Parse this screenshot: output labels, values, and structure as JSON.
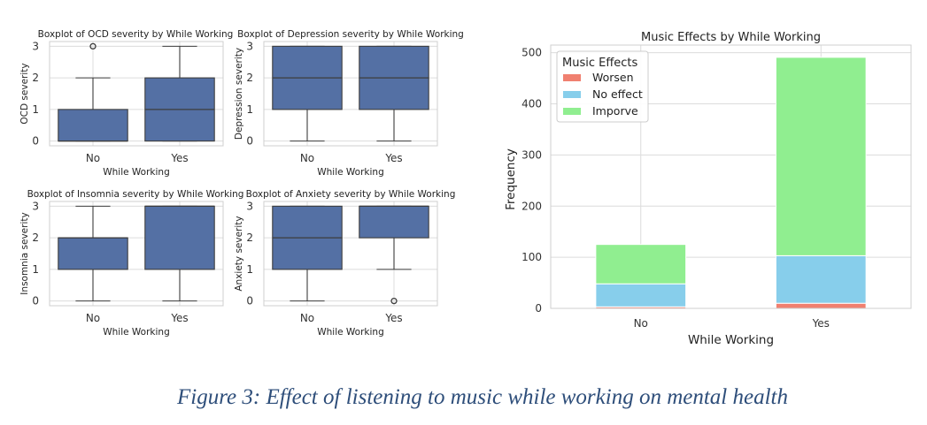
{
  "figure": {
    "caption": "Figure 3: Effect of listening to music while working on mental health"
  },
  "chart_data": [
    {
      "type": "boxplot",
      "title": "Boxplot of OCD severity by While Working",
      "xlabel": "While Working",
      "ylabel": "OCD severity",
      "categories": [
        "No",
        "Yes"
      ],
      "yticks": [
        0,
        1,
        2,
        3
      ],
      "ylim": [
        -0.15,
        3.15
      ],
      "grid": true,
      "color": "#5470a4",
      "boxes": [
        {
          "category": "No",
          "whislo": 0,
          "q1": 0,
          "med": 0,
          "q3": 1,
          "whishi": 2,
          "fliers": [
            3
          ]
        },
        {
          "category": "Yes",
          "whislo": 0,
          "q1": 0,
          "med": 1,
          "q3": 2,
          "whishi": 3,
          "fliers": []
        }
      ]
    },
    {
      "type": "boxplot",
      "title": "Boxplot of Depression severity by While Working",
      "xlabel": "While Working",
      "ylabel": "Depression severity",
      "categories": [
        "No",
        "Yes"
      ],
      "yticks": [
        0,
        1,
        2,
        3
      ],
      "ylim": [
        -0.15,
        3.15
      ],
      "grid": true,
      "color": "#5470a4",
      "boxes": [
        {
          "category": "No",
          "whislo": 0,
          "q1": 1,
          "med": 2,
          "q3": 3,
          "whishi": 3,
          "fliers": []
        },
        {
          "category": "Yes",
          "whislo": 0,
          "q1": 1,
          "med": 2,
          "q3": 3,
          "whishi": 3,
          "fliers": []
        }
      ]
    },
    {
      "type": "boxplot",
      "title": "Boxplot of Insomnia severity by While Working",
      "xlabel": "While Working",
      "ylabel": "Insomnia severity",
      "categories": [
        "No",
        "Yes"
      ],
      "yticks": [
        0,
        1,
        2,
        3
      ],
      "ylim": [
        -0.15,
        3.15
      ],
      "grid": true,
      "color": "#5470a4",
      "boxes": [
        {
          "category": "No",
          "whislo": 0,
          "q1": 1,
          "med": 2,
          "q3": 2,
          "whishi": 3,
          "fliers": []
        },
        {
          "category": "Yes",
          "whislo": 0,
          "q1": 1,
          "med": 3,
          "q3": 3,
          "whishi": 3,
          "fliers": []
        }
      ]
    },
    {
      "type": "boxplot",
      "title": "Boxplot of Anxiety severity by While Working",
      "xlabel": "While Working",
      "ylabel": "Anxiety severity",
      "categories": [
        "No",
        "Yes"
      ],
      "yticks": [
        0,
        1,
        2,
        3
      ],
      "ylim": [
        -0.15,
        3.15
      ],
      "grid": true,
      "color": "#5470a4",
      "boxes": [
        {
          "category": "No",
          "whislo": 0,
          "q1": 1,
          "med": 2,
          "q3": 3,
          "whishi": 3,
          "fliers": []
        },
        {
          "category": "Yes",
          "whislo": 1,
          "q1": 2,
          "med": 3,
          "q3": 3,
          "whishi": 3,
          "fliers": [
            0
          ]
        }
      ]
    },
    {
      "type": "bar",
      "stacked": true,
      "title": "Music Effects by While Working",
      "xlabel": "While Working",
      "ylabel": "Frequency",
      "categories": [
        "No",
        "Yes"
      ],
      "yticks": [
        0,
        100,
        200,
        300,
        400,
        500
      ],
      "ylim": [
        0,
        515
      ],
      "grid": true,
      "legend": {
        "title": "Music Effects",
        "placement": "top-left"
      },
      "series": [
        {
          "name": "Worsen",
          "color": "#f08070",
          "values": [
            3,
            10
          ]
        },
        {
          "name": "No effect",
          "color": "#87ceeb",
          "values": [
            45,
            93
          ]
        },
        {
          "name": "Imporve",
          "color": "#90ee90",
          "values": [
            77,
            388
          ]
        }
      ]
    }
  ]
}
